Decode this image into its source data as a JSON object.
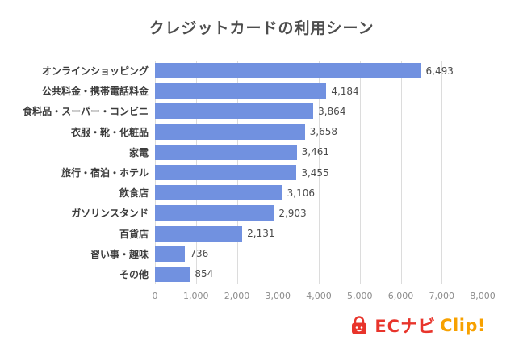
{
  "chart_data": {
    "type": "bar",
    "orientation": "horizontal",
    "title": "クレジットカードの利用シーン",
    "categories": [
      "オンラインショッピング",
      "公共料金・携帯電話料金",
      "食料品・スーパー・コンビニ",
      "衣服・靴・化粧品",
      "家電",
      "旅行・宿泊・ホテル",
      "飲食店",
      "ガソリンスタンド",
      "百貨店",
      "習い事・趣味",
      "その他"
    ],
    "values": [
      6493,
      4184,
      3864,
      3658,
      3461,
      3455,
      3106,
      2903,
      2131,
      736,
      854
    ],
    "value_labels": [
      "6,493",
      "4,184",
      "3,864",
      "3,658",
      "3,461",
      "3,455",
      "3,106",
      "2,903",
      "2,131",
      "736",
      "854"
    ],
    "xlim": [
      0,
      8000
    ],
    "x_ticks": [
      0,
      1000,
      2000,
      3000,
      4000,
      5000,
      6000,
      7000,
      8000
    ],
    "x_tick_labels": [
      "0",
      "1,000",
      "2,000",
      "3,000",
      "4,000",
      "5,000",
      "6,000",
      "7,000",
      "8,000"
    ],
    "grid": true,
    "legend": "none",
    "bar_color": "#7191e0",
    "gridline_color": "#dcdcdc"
  },
  "logo": {
    "brand": "ECナビ",
    "suffix": "Clip!",
    "brand_color": "#e8342b",
    "suffix_color": "#f7a100"
  }
}
